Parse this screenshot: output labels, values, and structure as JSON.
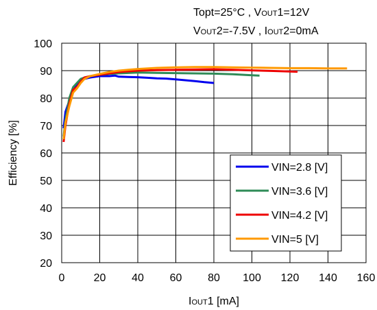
{
  "conditions": {
    "line1": {
      "topt": "Topt=25°C , V",
      "v1_sub": "OUT",
      "v1_val": "1=12V"
    },
    "line2": {
      "v_letter": "V",
      "v2_sub": "OUT",
      "v2_val": "2=-7.5V , I",
      "i2_sub": "OUT",
      "i2_val": "2=0mA"
    }
  },
  "axes": {
    "ylabel": "Efficiency [%]",
    "xlabel_main": "I",
    "xlabel_sub": "OUT",
    "xlabel_tail": "1 [mA]"
  },
  "chart_data": {
    "type": "line",
    "xlim": [
      0,
      160
    ],
    "ylim": [
      20,
      100
    ],
    "xticks": [
      0,
      20,
      40,
      60,
      80,
      100,
      120,
      140,
      160
    ],
    "yticks": [
      20,
      30,
      40,
      50,
      60,
      70,
      80,
      90,
      100
    ],
    "grid": true,
    "legend_position": "bottom-right",
    "series": [
      {
        "name": "VIN=2.8 [V]",
        "color": "#0000ee",
        "x": [
          1,
          2,
          4,
          6,
          8,
          10,
          12,
          15,
          20,
          25,
          28,
          30,
          35,
          40,
          45,
          50,
          55,
          60,
          65,
          70,
          75,
          80
        ],
        "y": [
          69,
          75,
          79,
          83,
          85,
          86.5,
          87,
          87.5,
          88,
          88,
          88.2,
          87.8,
          87.7,
          87.6,
          87.4,
          87.2,
          87.1,
          86.8,
          86.5,
          86.2,
          85.8,
          85.5
        ]
      },
      {
        "name": "VIN=3.6 [V]",
        "color": "#2e8b57",
        "x": [
          1,
          2,
          4,
          6,
          8,
          10,
          12,
          15,
          20,
          25,
          30,
          40,
          50,
          60,
          70,
          80,
          90,
          95,
          100,
          104
        ],
        "y": [
          66,
          72,
          80,
          84,
          85.5,
          87,
          87.5,
          88,
          88.5,
          88.8,
          89,
          89.3,
          89.2,
          89.1,
          89,
          88.9,
          88.7,
          88.5,
          88.3,
          88.2
        ]
      },
      {
        "name": "VIN=4.2 [V]",
        "color": "#ee0000",
        "x": [
          1,
          2,
          4,
          6,
          8,
          10,
          12,
          15,
          20,
          25,
          30,
          40,
          50,
          60,
          70,
          80,
          90,
          100,
          110,
          120,
          124
        ],
        "y": [
          64,
          70,
          78,
          83,
          84,
          86,
          87.5,
          88,
          88.5,
          89,
          89.5,
          90,
          90.2,
          90.3,
          90.4,
          90.5,
          90.3,
          90.1,
          89.9,
          89.7,
          89.6
        ]
      },
      {
        "name": "VIN=5 [V]",
        "color": "#ff9900",
        "x": [
          1,
          2,
          4,
          6,
          8,
          10,
          12,
          15,
          20,
          25,
          30,
          35,
          40,
          50,
          60,
          70,
          80,
          90,
          100,
          110,
          120,
          130,
          140,
          150
        ],
        "y": [
          65,
          71,
          77,
          82,
          83.5,
          85.5,
          87,
          88,
          88.8,
          89.5,
          90,
          90.3,
          90.6,
          91,
          91.2,
          91.3,
          91.3,
          91.2,
          91.1,
          91,
          90.9,
          90.9,
          90.8,
          90.8
        ]
      }
    ]
  }
}
